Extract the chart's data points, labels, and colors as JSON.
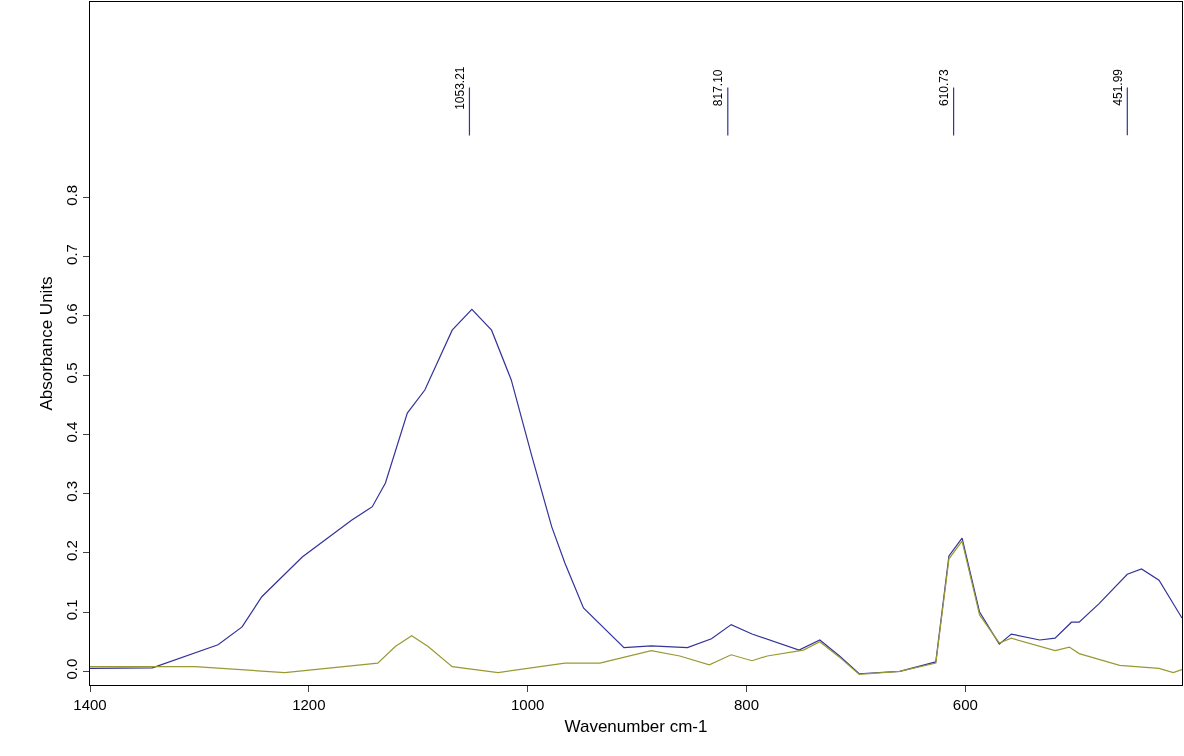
{
  "chart_data": {
    "type": "line",
    "xlabel": "Wavenumber cm-1",
    "ylabel": "Absorbance Units",
    "xlim": [
      1400,
      402
    ],
    "ylim": [
      -0.023,
      1.13
    ],
    "xticks": [
      1400,
      1200,
      1000,
      800,
      600
    ],
    "yticks": [
      {
        "value": 0,
        "label": "0.0"
      },
      {
        "value": 0.1,
        "label": "0.1"
      },
      {
        "value": 0.2,
        "label": "0.2"
      },
      {
        "value": 0.3,
        "label": "0.3"
      },
      {
        "value": 0.4,
        "label": "0.4"
      },
      {
        "value": 0.5,
        "label": "0.5"
      },
      {
        "value": 0.6,
        "label": "0.6"
      },
      {
        "value": 0.7,
        "label": "0.7"
      },
      {
        "value": 0.8,
        "label": "0.8"
      }
    ],
    "marker": "none",
    "line_style": "solid",
    "series": [
      {
        "color": "#333399",
        "x": [
          1400,
          1343,
          1283,
          1261,
          1243,
          1206,
          1161,
          1142,
          1130,
          1110,
          1094,
          1069,
          1051,
          1033,
          1015,
          996,
          978,
          966,
          949,
          912,
          887,
          854,
          832,
          814,
          795,
          752,
          733,
          715,
          697,
          660,
          627,
          615,
          603,
          587,
          569,
          558,
          532,
          518,
          503,
          496,
          478,
          452,
          439,
          423,
          402
        ],
        "values": [
          0.005,
          0.006,
          0.045,
          0.075,
          0.126,
          0.193,
          0.255,
          0.278,
          0.318,
          0.436,
          0.475,
          0.576,
          0.611,
          0.576,
          0.492,
          0.362,
          0.244,
          0.183,
          0.107,
          0.04,
          0.043,
          0.04,
          0.055,
          0.079,
          0.063,
          0.036,
          0.053,
          0.026,
          -0.004,
          0.0,
          0.016,
          0.195,
          0.225,
          0.1,
          0.046,
          0.063,
          0.053,
          0.056,
          0.083,
          0.083,
          0.114,
          0.164,
          0.173,
          0.154,
          0.09
        ]
      },
      {
        "color": "#999933",
        "x": [
          1400,
          1380,
          1304,
          1222,
          1137,
          1121,
          1106,
          1091,
          1069,
          1027,
          966,
          934,
          887,
          861,
          834,
          814,
          795,
          781,
          748,
          733,
          715,
          697,
          660,
          627,
          615,
          603,
          587,
          569,
          558,
          518,
          505,
          496,
          459,
          423,
          410,
          402
        ],
        "values": [
          0.008,
          0.008,
          0.008,
          -0.002,
          0.014,
          0.042,
          0.06,
          0.042,
          0.008,
          -0.002,
          0.014,
          0.014,
          0.035,
          0.026,
          0.011,
          0.028,
          0.018,
          0.026,
          0.036,
          0.05,
          0.024,
          -0.005,
          0.0,
          0.014,
          0.19,
          0.22,
          0.095,
          0.048,
          0.056,
          0.035,
          0.041,
          0.03,
          0.01,
          0.005,
          -0.002,
          0.003
        ]
      }
    ],
    "annotations": [
      {
        "text": "1053.21",
        "x": 1053.21,
        "y": 0.611
      },
      {
        "text": "817.10",
        "x": 817.1,
        "y": 0.079
      },
      {
        "text": "610.73",
        "x": 610.73,
        "y": 0.21
      },
      {
        "text": "451.99",
        "x": 451.99,
        "y": 0.165
      }
    ]
  }
}
